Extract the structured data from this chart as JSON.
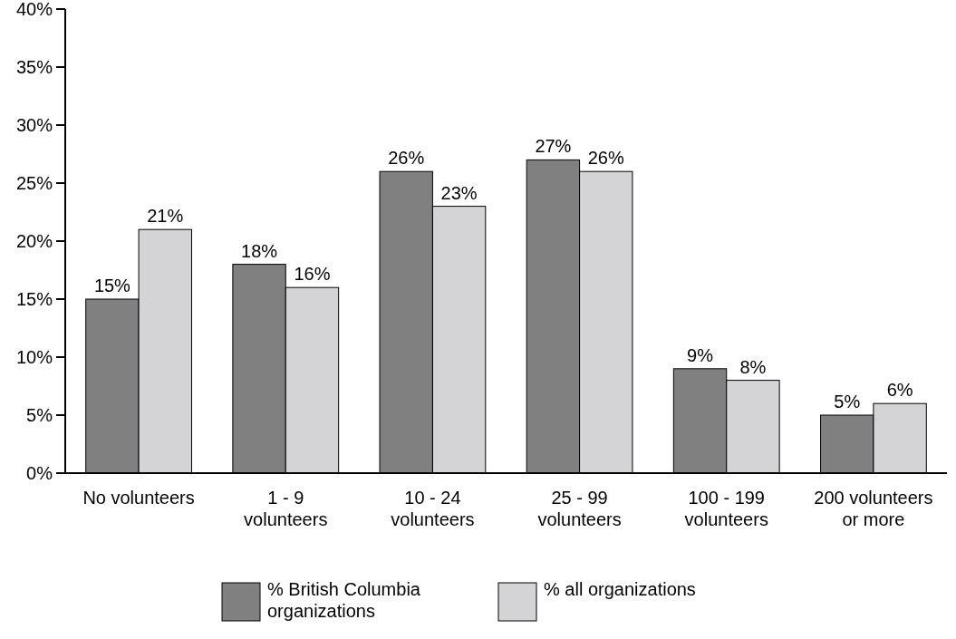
{
  "chart_data": {
    "type": "bar",
    "categories": [
      "No volunteers",
      "1 - 9 volunteers",
      "10 - 24 volunteers",
      "25 - 99 volunteers",
      "100 - 199 volunteers",
      "200 volunteers or more"
    ],
    "series": [
      {
        "name": "% British Columbia organizations",
        "color": "#808080",
        "values": [
          15,
          18,
          26,
          27,
          9,
          5
        ],
        "value_labels": [
          "15%",
          "18%",
          "26%",
          "27%",
          "9%",
          "5%"
        ]
      },
      {
        "name": "% all organizations",
        "color": "#d4d4d6",
        "values": [
          21,
          16,
          23,
          26,
          8,
          6
        ],
        "value_labels": [
          "21%",
          "16%",
          "23%",
          "26%",
          "8%",
          "6%"
        ]
      }
    ],
    "ylim": [
      0,
      40
    ],
    "yticks": [
      {
        "value": 0,
        "label": "0%"
      },
      {
        "value": 5,
        "label": "5%"
      },
      {
        "value": 10,
        "label": "10%"
      },
      {
        "value": 15,
        "label": "15%"
      },
      {
        "value": 20,
        "label": "20%"
      },
      {
        "value": 25,
        "label": "25%"
      },
      {
        "value": 30,
        "label": "30%"
      },
      {
        "value": 35,
        "label": "35%"
      },
      {
        "value": 40,
        "label": "40%"
      }
    ],
    "grid": false,
    "legend": "bottom"
  }
}
